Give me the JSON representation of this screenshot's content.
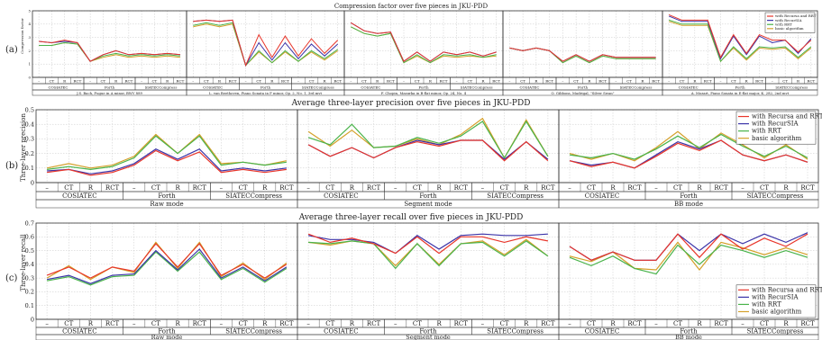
{
  "colors": {
    "recursa_rrt": "#e8352a",
    "recursia": "#3b33a8",
    "rrt": "#49b34a",
    "basic": "#d4a02a",
    "grid": "#c8c8c8",
    "frame": "#333333"
  },
  "panels": {
    "a": {
      "tag": "(a)",
      "title": "Compression factor over five pieces in JKU-PDD",
      "ylabel": "Compression factor"
    },
    "b": {
      "tag": "(b)",
      "title": "Average three-layer precision over five pieces in JKU-PDD",
      "ylabel": "Three-layer precision"
    },
    "c": {
      "tag": "(c)",
      "title": "Average three-layer recall over five pieces in JKU-PDD",
      "ylabel": "Three-layer recall"
    }
  },
  "chart_data": [
    {
      "type": "line",
      "title": "Compression factor over five pieces in JKU-PDD",
      "ylabel": "Compression factor",
      "ylim": [
        0,
        5
      ],
      "yticks": [
        0,
        1,
        2,
        3,
        4,
        5
      ],
      "grid": true,
      "legend": "top-right of last subplot",
      "categories": [
        "–",
        "CT",
        "R",
        "RCT"
      ],
      "groups": [
        "COSIATEC",
        "Forth",
        "SIATECCompress"
      ],
      "subplots": [
        {
          "label": "J.S. Bach, Fugue in A minor, BWV 889",
          "series": [
            {
              "name": "with Recursa and RRT",
              "values": [
                2.7,
                2.6,
                2.8,
                2.6,
                1.2,
                1.7,
                2.0,
                1.7,
                1.8,
                1.7,
                1.8,
                1.7
              ]
            },
            {
              "name": "with RecurSIA",
              "values": [
                2.7,
                2.6,
                2.7,
                2.6,
                1.2,
                1.7,
                2.0,
                1.7,
                1.8,
                1.7,
                1.8,
                1.7
              ]
            },
            {
              "name": "with RRT",
              "values": [
                2.4,
                2.4,
                2.6,
                2.5,
                1.2,
                1.6,
                1.8,
                1.6,
                1.7,
                1.6,
                1.7,
                1.6
              ]
            },
            {
              "name": "basic algorithm",
              "values": [
                2.4,
                2.4,
                2.6,
                2.5,
                1.2,
                1.5,
                1.7,
                1.5,
                1.6,
                1.5,
                1.6,
                1.5
              ]
            }
          ]
        },
        {
          "label": "L. van Beethoven, Piano Sonata in F minor, Op. 2, No. 1, 3rd mvt",
          "series": [
            {
              "name": "with Recursa and RRT",
              "values": [
                4.2,
                4.3,
                4.2,
                4.3,
                0.9,
                3.2,
                1.5,
                3.1,
                1.6,
                2.9,
                1.8,
                2.8
              ]
            },
            {
              "name": "with RecurSIA",
              "values": [
                4.2,
                4.3,
                4.2,
                4.3,
                0.9,
                2.6,
                1.3,
                2.6,
                1.4,
                2.5,
                1.6,
                2.5
              ]
            },
            {
              "name": "with RRT",
              "values": [
                3.9,
                4.1,
                3.9,
                4.1,
                0.9,
                2.0,
                1.1,
                2.0,
                1.2,
                2.0,
                1.4,
                2.1
              ]
            },
            {
              "name": "basic algorithm",
              "values": [
                3.8,
                4.0,
                3.8,
                4.0,
                0.9,
                1.9,
                1.1,
                1.9,
                1.2,
                1.9,
                1.3,
                2.0
              ]
            }
          ]
        },
        {
          "label": "F. Chopin, Mazurka in B-flat minor, Op. 24, No. 4",
          "series": [
            {
              "name": "with Recursa and RRT",
              "values": [
                4.1,
                3.5,
                3.3,
                3.4,
                1.2,
                1.9,
                1.2,
                1.9,
                1.7,
                1.9,
                1.6,
                1.9
              ]
            },
            {
              "name": "with RecurSIA",
              "values": [
                4.1,
                3.5,
                3.3,
                3.4,
                1.2,
                1.9,
                1.2,
                1.9,
                1.7,
                1.9,
                1.6,
                1.9
              ]
            },
            {
              "name": "with RRT",
              "values": [
                3.8,
                3.3,
                3.1,
                3.3,
                1.1,
                1.7,
                1.1,
                1.7,
                1.6,
                1.7,
                1.5,
                1.7
              ]
            },
            {
              "name": "basic algorithm",
              "values": [
                3.8,
                3.3,
                3.1,
                3.3,
                1.1,
                1.6,
                1.1,
                1.6,
                1.5,
                1.6,
                1.5,
                1.6
              ]
            }
          ]
        },
        {
          "label": "O. Gibbons, Madrigal, \"Silver Swan\"",
          "series": [
            {
              "name": "with Recursa and RRT",
              "values": [
                2.2,
                2.0,
                2.2,
                2.0,
                1.2,
                1.7,
                1.2,
                1.7,
                1.5,
                1.5,
                1.5,
                1.5
              ]
            },
            {
              "name": "with RecurSIA",
              "values": [
                2.2,
                2.0,
                2.2,
                2.0,
                1.2,
                1.7,
                1.2,
                1.7,
                1.5,
                1.5,
                1.5,
                1.5
              ]
            },
            {
              "name": "with RRT",
              "values": [
                2.2,
                2.0,
                2.2,
                2.0,
                1.1,
                1.6,
                1.1,
                1.6,
                1.4,
                1.4,
                1.4,
                1.4
              ]
            },
            {
              "name": "basic algorithm",
              "values": [
                2.2,
                2.0,
                2.2,
                2.0,
                1.1,
                1.6,
                1.1,
                1.6,
                1.4,
                1.4,
                1.4,
                1.4
              ]
            }
          ]
        },
        {
          "label": "A. Mozart, Piano Sonata in E-flat major, K. 282, 2nd mvt",
          "series": [
            {
              "name": "with Recursa and RRT",
              "values": [
                4.7,
                4.3,
                4.3,
                4.3,
                1.5,
                3.2,
                1.8,
                3.2,
                2.8,
                2.8,
                1.9,
                2.8
              ]
            },
            {
              "name": "with RecurSIA",
              "values": [
                4.6,
                4.2,
                4.2,
                4.2,
                1.4,
                3.1,
                1.7,
                3.1,
                2.6,
                2.8,
                1.8,
                2.9
              ]
            },
            {
              "name": "with RRT",
              "values": [
                4.3,
                4.0,
                4.0,
                4.0,
                1.2,
                2.3,
                1.4,
                2.3,
                2.2,
                2.3,
                1.5,
                2.3
              ]
            },
            {
              "name": "basic algorithm",
              "values": [
                4.2,
                3.9,
                3.9,
                3.9,
                1.2,
                2.2,
                1.3,
                2.2,
                2.1,
                2.2,
                1.4,
                2.2
              ]
            }
          ]
        }
      ]
    },
    {
      "type": "line",
      "title": "Average three-layer precision over five pieces in JKU-PDD",
      "ylabel": "Three-layer precision",
      "ylim": [
        0,
        0.5
      ],
      "yticks": [
        0,
        0.1,
        0.2,
        0.3,
        0.4,
        0.5
      ],
      "grid": true,
      "legend": "top-right",
      "categories": [
        "–",
        "CT",
        "R",
        "RCT"
      ],
      "groups": [
        "COSIATEC",
        "Forth",
        "SIATECCompress"
      ],
      "subplots": [
        {
          "label": "Raw mode",
          "series": [
            {
              "name": "with Recursa and RRT",
              "values": [
                0.07,
                0.09,
                0.05,
                0.07,
                0.12,
                0.22,
                0.15,
                0.21,
                0.07,
                0.09,
                0.07,
                0.09
              ]
            },
            {
              "name": "with RecurSIA",
              "values": [
                0.08,
                0.09,
                0.06,
                0.08,
                0.13,
                0.23,
                0.16,
                0.23,
                0.08,
                0.1,
                0.08,
                0.1
              ]
            },
            {
              "name": "with RRT",
              "values": [
                0.09,
                0.11,
                0.09,
                0.11,
                0.17,
                0.32,
                0.2,
                0.32,
                0.12,
                0.14,
                0.12,
                0.14
              ]
            },
            {
              "name": "basic algorithm",
              "values": [
                0.1,
                0.13,
                0.1,
                0.12,
                0.18,
                0.33,
                0.2,
                0.33,
                0.13,
                0.14,
                0.12,
                0.15
              ]
            }
          ]
        },
        {
          "label": "Segment mode",
          "series": [
            {
              "name": "with Recursa and RRT",
              "values": [
                0.26,
                0.18,
                0.24,
                0.17,
                0.24,
                0.28,
                0.25,
                0.29,
                0.29,
                0.15,
                0.28,
                0.15
              ]
            },
            {
              "name": "with RecurSIA",
              "values": [
                0.26,
                0.18,
                0.24,
                0.17,
                0.24,
                0.29,
                0.26,
                0.29,
                0.29,
                0.16,
                0.28,
                0.16
              ]
            },
            {
              "name": "with RRT",
              "values": [
                0.31,
                0.26,
                0.4,
                0.24,
                0.25,
                0.31,
                0.27,
                0.32,
                0.42,
                0.17,
                0.42,
                0.18
              ]
            },
            {
              "name": "basic algorithm",
              "values": [
                0.35,
                0.25,
                0.36,
                0.24,
                0.25,
                0.3,
                0.26,
                0.33,
                0.44,
                0.17,
                0.43,
                0.18
              ]
            }
          ]
        },
        {
          "label": "BB mode",
          "series": [
            {
              "name": "with Recursa and RRT",
              "values": [
                0.15,
                0.11,
                0.14,
                0.1,
                0.18,
                0.27,
                0.22,
                0.29,
                0.19,
                0.15,
                0.19,
                0.14
              ]
            },
            {
              "name": "with RecurSIA",
              "values": [
                0.15,
                0.12,
                0.14,
                0.1,
                0.19,
                0.28,
                0.23,
                0.29,
                0.19,
                0.15,
                0.19,
                0.14
              ]
            },
            {
              "name": "with RRT",
              "values": [
                0.19,
                0.17,
                0.2,
                0.16,
                0.23,
                0.32,
                0.24,
                0.33,
                0.25,
                0.18,
                0.25,
                0.17
              ]
            },
            {
              "name": "basic algorithm",
              "values": [
                0.2,
                0.16,
                0.2,
                0.15,
                0.24,
                0.35,
                0.23,
                0.34,
                0.26,
                0.17,
                0.26,
                0.16
              ]
            }
          ]
        }
      ]
    },
    {
      "type": "line",
      "title": "Average three-layer recall over five pieces in JKU-PDD",
      "ylabel": "Three-layer recall",
      "ylim": [
        0,
        0.7
      ],
      "yticks": [
        0,
        0.1,
        0.2,
        0.3,
        0.4,
        0.5,
        0.6,
        0.7
      ],
      "grid": true,
      "legend": "bottom-right",
      "categories": [
        "–",
        "CT",
        "R",
        "RCT"
      ],
      "groups": [
        "COSIATEC",
        "Forth",
        "SIATECCompress"
      ],
      "subplots": [
        {
          "label": "Raw mode",
          "series": [
            {
              "name": "with Recursa and RRT",
              "values": [
                0.32,
                0.38,
                0.3,
                0.38,
                0.35,
                0.55,
                0.38,
                0.55,
                0.32,
                0.4,
                0.3,
                0.4
              ]
            },
            {
              "name": "with RecurSIA",
              "values": [
                0.29,
                0.32,
                0.26,
                0.32,
                0.33,
                0.5,
                0.36,
                0.51,
                0.3,
                0.38,
                0.28,
                0.38
              ]
            },
            {
              "name": "with RRT",
              "values": [
                0.28,
                0.31,
                0.25,
                0.31,
                0.32,
                0.49,
                0.35,
                0.49,
                0.29,
                0.37,
                0.27,
                0.37
              ]
            },
            {
              "name": "basic algorithm",
              "values": [
                0.3,
                0.39,
                0.29,
                0.38,
                0.34,
                0.56,
                0.37,
                0.56,
                0.31,
                0.41,
                0.29,
                0.41
              ]
            }
          ]
        },
        {
          "label": "Segment mode",
          "series": [
            {
              "name": "with Recursa and RRT",
              "values": [
                0.62,
                0.56,
                0.59,
                0.55,
                0.48,
                0.6,
                0.48,
                0.6,
                0.6,
                0.56,
                0.6,
                0.57
              ]
            },
            {
              "name": "with RecurSIA",
              "values": [
                0.61,
                0.58,
                0.58,
                0.56,
                0.48,
                0.61,
                0.51,
                0.61,
                0.62,
                0.61,
                0.61,
                0.62
              ]
            },
            {
              "name": "with RRT",
              "values": [
                0.56,
                0.55,
                0.57,
                0.55,
                0.37,
                0.55,
                0.39,
                0.55,
                0.56,
                0.46,
                0.57,
                0.46
              ]
            },
            {
              "name": "basic algorithm",
              "values": [
                0.56,
                0.54,
                0.57,
                0.55,
                0.39,
                0.55,
                0.4,
                0.55,
                0.57,
                0.47,
                0.58,
                0.46
              ]
            }
          ]
        },
        {
          "label": "BB mode",
          "series": [
            {
              "name": "with Recursa and RRT",
              "values": [
                0.53,
                0.43,
                0.49,
                0.43,
                0.43,
                0.62,
                0.45,
                0.62,
                0.51,
                0.59,
                0.53,
                0.62
              ]
            },
            {
              "name": "with RecurSIA",
              "values": [
                0.53,
                0.43,
                0.49,
                0.43,
                0.43,
                0.62,
                0.5,
                0.62,
                0.55,
                0.62,
                0.56,
                0.63
              ]
            },
            {
              "name": "with RRT",
              "values": [
                0.45,
                0.39,
                0.46,
                0.37,
                0.33,
                0.54,
                0.4,
                0.54,
                0.5,
                0.45,
                0.5,
                0.45
              ]
            },
            {
              "name": "basic algorithm",
              "values": [
                0.46,
                0.42,
                0.49,
                0.37,
                0.36,
                0.56,
                0.36,
                0.56,
                0.52,
                0.47,
                0.52,
                0.47
              ]
            }
          ]
        }
      ]
    }
  ]
}
